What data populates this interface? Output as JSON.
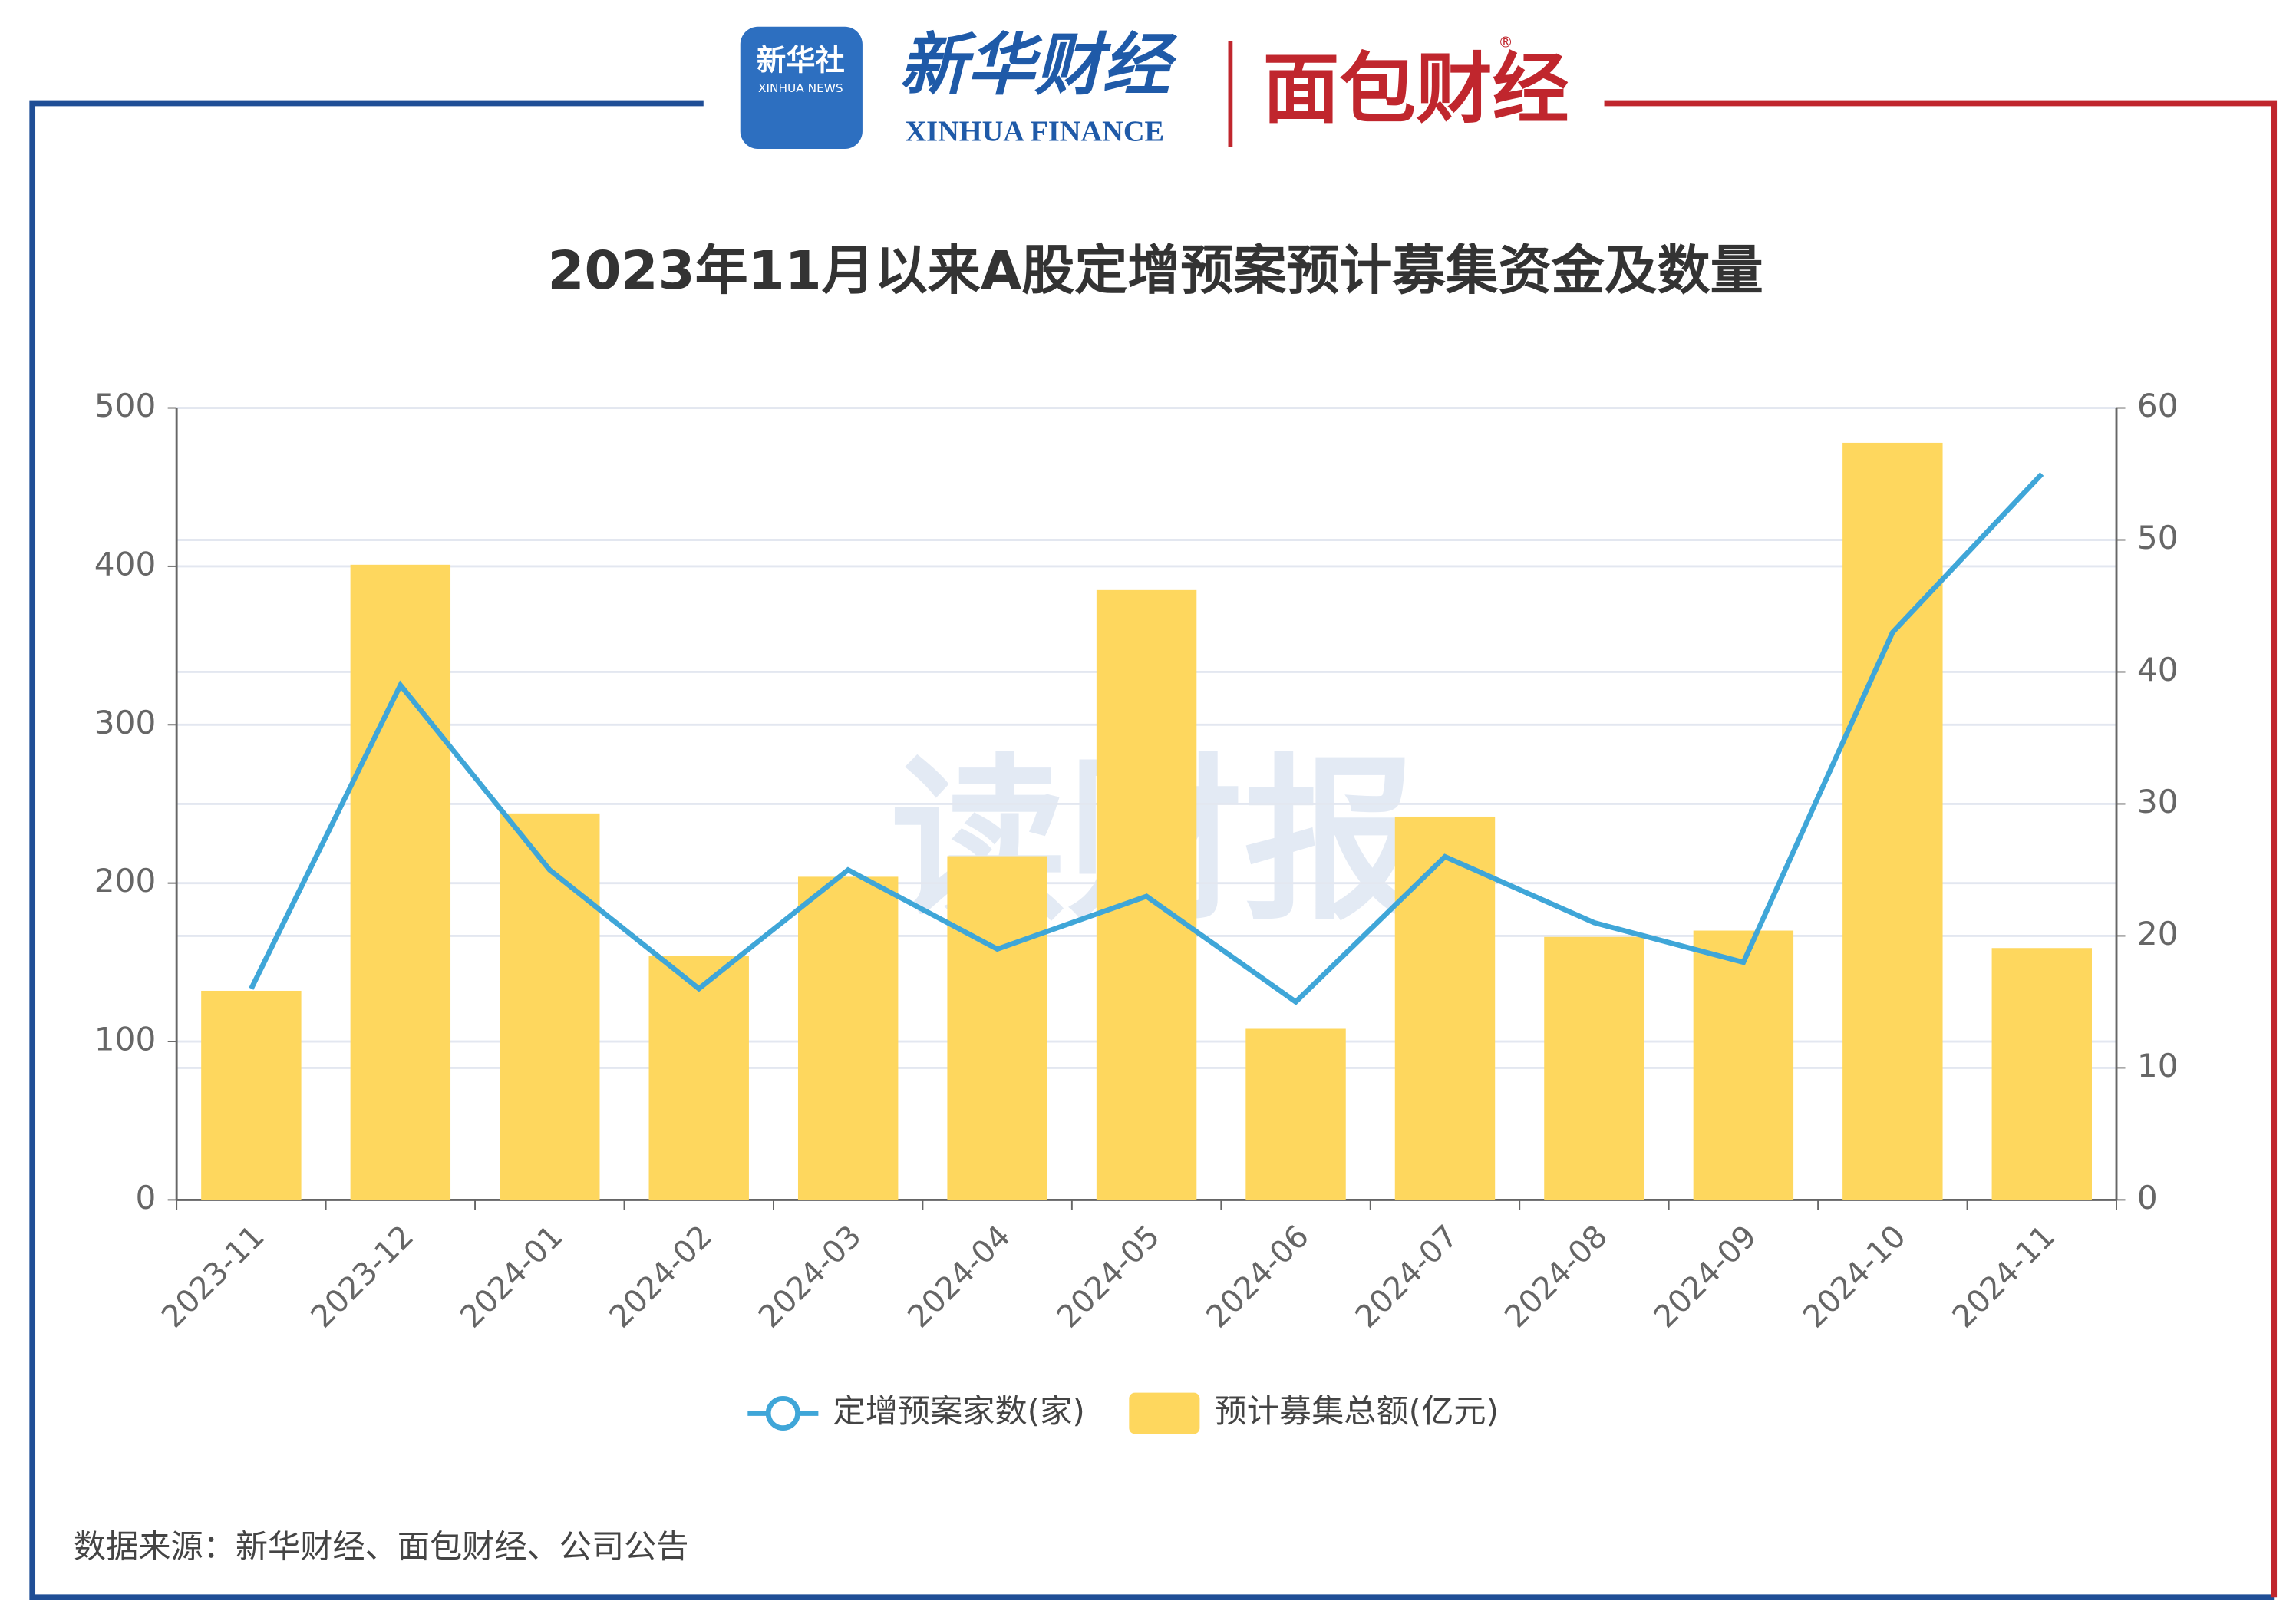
{
  "header": {
    "logo1": "新华社",
    "logo1_sub": "XINHUA NEWS",
    "logo2": "新华财经",
    "logo2_sub": "XINHUA FINANCE",
    "logo3": "面包财经",
    "logo3_mark": "®"
  },
  "watermark": "读财报",
  "source": "数据来源：新华财经、面包财经、公司公告",
  "chart_data": {
    "type": "bar",
    "title": "2023年11月以来A股定增预案预计募集资金及数量",
    "categories": [
      "2023-11",
      "2023-12",
      "2024-01",
      "2024-02",
      "2024-03",
      "2024-04",
      "2024-05",
      "2024-06",
      "2024-07",
      "2024-08",
      "2024-09",
      "2024-10",
      "2024-11"
    ],
    "series": [
      {
        "name": "定增预案家数(家)",
        "type": "line",
        "axis": "y2",
        "color": "#3fa6d8",
        "values": [
          16,
          39,
          25,
          16,
          25,
          19,
          23,
          15,
          26,
          21,
          18,
          43,
          55
        ]
      },
      {
        "name": "预计募集总额(亿元)",
        "type": "bar",
        "color": "#fed75e",
        "values": [
          132,
          401,
          244,
          154,
          204,
          217,
          385,
          108,
          242,
          166,
          170,
          478,
          159
        ]
      }
    ],
    "ylim": [
      0,
      500
    ],
    "yticks": [
      0,
      100,
      200,
      300,
      400,
      500
    ],
    "y2lim": [
      0,
      60
    ],
    "y2ticks": [
      0,
      10,
      20,
      30,
      40,
      50,
      60
    ],
    "grid": true,
    "legend": "bottom"
  }
}
